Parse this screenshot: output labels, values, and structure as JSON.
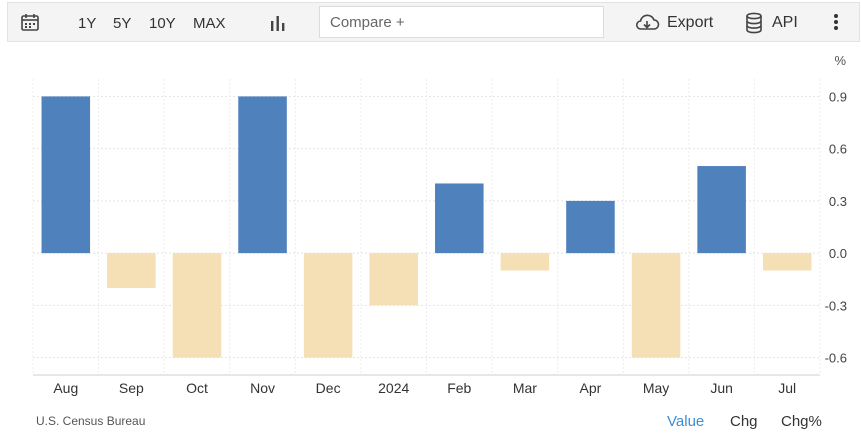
{
  "toolbar": {
    "ranges": [
      "1Y",
      "5Y",
      "10Y",
      "MAX"
    ],
    "compare_placeholder": "Compare +",
    "export_label": "Export",
    "api_label": "API",
    "icons": [
      "calendar-icon",
      "bar-chart-icon",
      "cloud-download-icon",
      "database-icon",
      "more-vertical-icon"
    ]
  },
  "chart_data": {
    "type": "bar",
    "unit_label": "%",
    "categories": [
      "Aug",
      "Sep",
      "Oct",
      "Nov",
      "Dec",
      "2024",
      "Feb",
      "Mar",
      "Apr",
      "May",
      "Jun",
      "Jul"
    ],
    "values": [
      0.9,
      -0.2,
      -0.6,
      0.9,
      -0.6,
      -0.3,
      0.4,
      -0.1,
      0.3,
      -0.6,
      0.5,
      -0.1
    ],
    "yticks": [
      "0.9",
      "0.6",
      "0.3",
      "0.0",
      "-0.3",
      "-0.6"
    ],
    "ylim": [
      -0.7,
      1.0
    ],
    "grid": true,
    "colors": {
      "positive": "#4f81bd",
      "negative": "#f5dfb4"
    }
  },
  "footer": {
    "source": "U.S. Census Bureau",
    "options": [
      "Value",
      "Chg",
      "Chg%"
    ],
    "active_option": "Value",
    "active_color": "#3b8fd4"
  }
}
